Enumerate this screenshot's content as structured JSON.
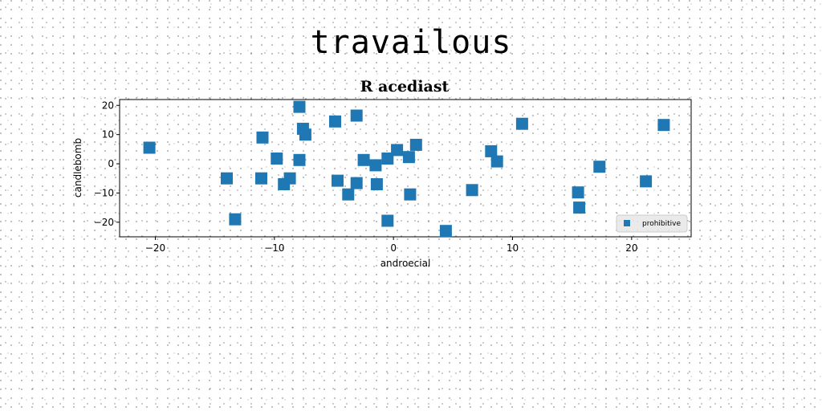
{
  "figure": {
    "suptitle": "travailous"
  },
  "chart_data": {
    "type": "scatter",
    "title": "R acediast",
    "xlabel": "androecial",
    "ylabel": "candlebomb",
    "xlim": [
      -23,
      25
    ],
    "ylim": [
      -25,
      22
    ],
    "xticks": [
      -20,
      -10,
      0,
      10,
      20
    ],
    "yticks": [
      -20,
      -10,
      0,
      10,
      20
    ],
    "xtick_labels": [
      "−20",
      "−10",
      "0",
      "10",
      "20"
    ],
    "ytick_labels": [
      "−20",
      "−10",
      "0",
      "10",
      "20"
    ],
    "grid": false,
    "legend_position": "lower-right",
    "series": [
      {
        "name": "prohibitive",
        "color": "#1f77b4",
        "marker": "square",
        "points": [
          [
            -20.5,
            5.5
          ],
          [
            -14,
            -5
          ],
          [
            -13.3,
            -19
          ],
          [
            -11.1,
            -5
          ],
          [
            -11,
            9
          ],
          [
            -9.8,
            1.8
          ],
          [
            -9.2,
            -7
          ],
          [
            -8.7,
            -5
          ],
          [
            -7.9,
            19.5
          ],
          [
            -7.9,
            1.3
          ],
          [
            -7.6,
            12
          ],
          [
            -7.4,
            10
          ],
          [
            -4.9,
            14.5
          ],
          [
            -4.7,
            -5.8
          ],
          [
            -3.8,
            -10.5
          ],
          [
            -3.1,
            16.5
          ],
          [
            -3.1,
            -6.6
          ],
          [
            -2.5,
            1.3
          ],
          [
            -1.5,
            -0.5
          ],
          [
            -1.4,
            -7
          ],
          [
            -0.5,
            1.8
          ],
          [
            -0.5,
            -19.5
          ],
          [
            0.3,
            4.7
          ],
          [
            1.3,
            2.3
          ],
          [
            1.4,
            -10.5
          ],
          [
            1.9,
            6.5
          ],
          [
            4.4,
            -23
          ],
          [
            6.6,
            -9
          ],
          [
            8.2,
            4.3
          ],
          [
            8.7,
            0.8
          ],
          [
            10.8,
            13.7
          ],
          [
            15.5,
            -9.8
          ],
          [
            15.6,
            -15
          ],
          [
            17.3,
            -1
          ],
          [
            21.2,
            -6
          ],
          [
            22.7,
            13.3
          ]
        ]
      }
    ]
  }
}
